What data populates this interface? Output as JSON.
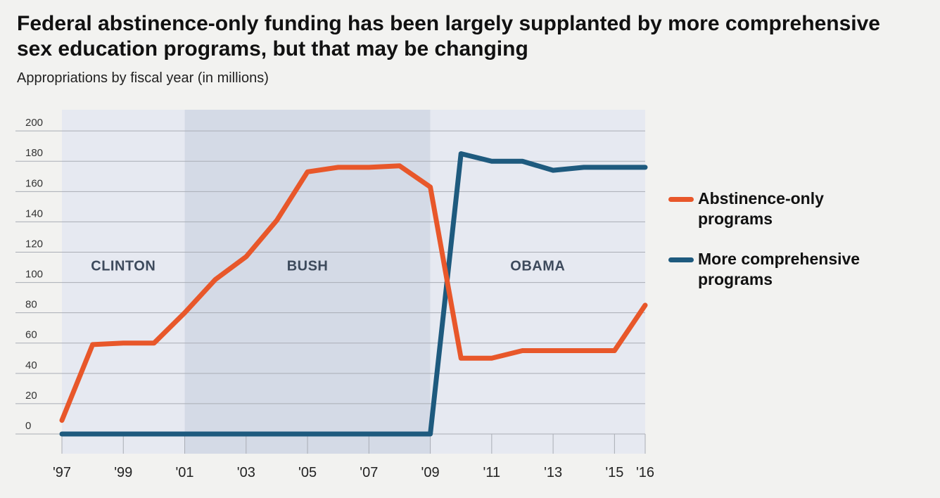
{
  "chart_data": {
    "type": "line",
    "title": "Federal abstinence-only funding has been largely supplanted by more comprehensive sex education programs, but that may be changing",
    "subtitle": "Appropriations by fiscal year (in millions)",
    "xlabel": "",
    "ylabel": "",
    "x": [
      1997,
      1998,
      1999,
      2000,
      2001,
      2002,
      2003,
      2004,
      2005,
      2006,
      2007,
      2008,
      2009,
      2010,
      2011,
      2012,
      2013,
      2014,
      2015,
      2016
    ],
    "x_tick_labels": [
      "'97",
      "'99",
      "'01",
      "'03",
      "'05",
      "'07",
      "'09",
      "'11",
      "'13",
      "'15",
      "'16"
    ],
    "x_tick_values": [
      1997,
      1999,
      2001,
      2003,
      2005,
      2007,
      2009,
      2011,
      2013,
      2015,
      2016
    ],
    "y_ticks": [
      0,
      20,
      40,
      60,
      80,
      100,
      120,
      140,
      160,
      180,
      200
    ],
    "ylim": [
      -13,
      214
    ],
    "grid": true,
    "legend_position": "right",
    "series": [
      {
        "name": "Abstinence-only\nprograms",
        "color": "#e8572a",
        "values": [
          9,
          59,
          60,
          60,
          80,
          102,
          117,
          141,
          173,
          176,
          176,
          177,
          163,
          50,
          50,
          55,
          55,
          55,
          55,
          85
        ]
      },
      {
        "name": "More comprehensive\nprograms",
        "color": "#1e5a7e",
        "values": [
          0,
          0,
          0,
          0,
          0,
          0,
          0,
          0,
          0,
          0,
          0,
          0,
          0,
          185,
          180,
          180,
          174,
          176,
          176,
          176
        ]
      }
    ],
    "eras": [
      {
        "label": "CLINTON",
        "start": 1997,
        "end": 2001,
        "color": "#e6e9f1"
      },
      {
        "label": "BUSH",
        "start": 2001,
        "end": 2009,
        "color": "#d4dae6"
      },
      {
        "label": "OBAMA",
        "start": 2009,
        "end": 2016,
        "color": "#e6e9f1"
      }
    ]
  }
}
